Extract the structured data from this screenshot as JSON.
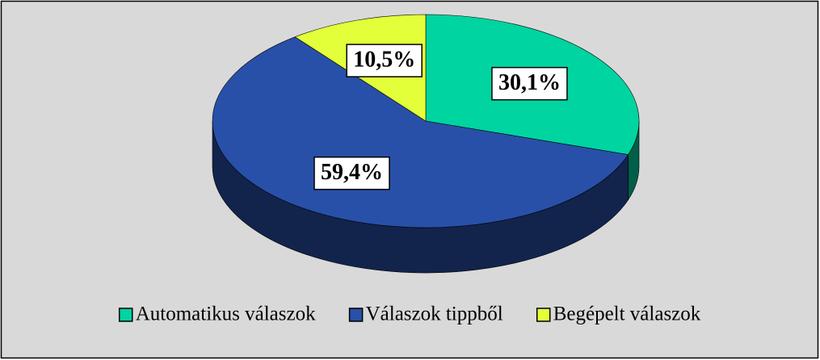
{
  "chart_data": {
    "type": "pie",
    "categories": [
      "Automatikus válaszok",
      "Válaszok tippből",
      "Begépelt válaszok"
    ],
    "values": [
      30.1,
      59.4,
      10.5
    ],
    "value_labels": [
      "30,1%",
      "59,4%",
      "10,5%"
    ],
    "colors": [
      "#00d4a0",
      "#2850a8",
      "#e2ff3a"
    ],
    "legend": "bottom"
  }
}
